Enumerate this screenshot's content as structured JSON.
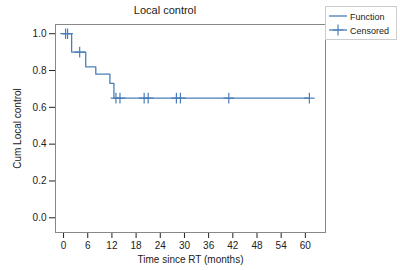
{
  "chart_data": {
    "type": "line",
    "title": "Local control",
    "x_label": "Time since RT (months)",
    "y_label": "Cum Local control",
    "xlim": [
      -2,
      65
    ],
    "xticks": [
      0,
      6,
      12,
      18,
      24,
      30,
      36,
      42,
      48,
      54,
      60
    ],
    "ylim": [
      -0.08,
      1.05
    ],
    "yticks": [
      {
        "value": 0,
        "label": "0.0"
      },
      {
        "value": 0.2,
        "label": "0.2"
      },
      {
        "value": 0.4,
        "label": "0.4"
      },
      {
        "value": 0.6,
        "label": "0.6"
      },
      {
        "value": 0.8,
        "label": "0.8"
      },
      {
        "value": 1,
        "label": "1.0"
      }
    ],
    "grid": false,
    "legend": "right",
    "series": [
      {
        "name": "Function",
        "type": "line",
        "line_style": "step",
        "color": "#4a7ebb",
        "x": [
          0,
          2,
          5.5,
          8,
          11.5,
          12.5,
          61
        ],
        "values": [
          1,
          0.9,
          0.82,
          0.78,
          0.73,
          0.65,
          0.65
        ]
      },
      {
        "name": "Censored",
        "type": "scatter",
        "marker": "plus",
        "color": "#4a7ebb",
        "x": [
          0.5,
          1,
          4,
          13,
          14,
          20,
          21,
          28,
          29,
          41,
          61
        ],
        "values": [
          1,
          1,
          0.9,
          0.65,
          0.65,
          0.65,
          0.65,
          0.65,
          0.65,
          0.65,
          0.65
        ]
      }
    ]
  }
}
